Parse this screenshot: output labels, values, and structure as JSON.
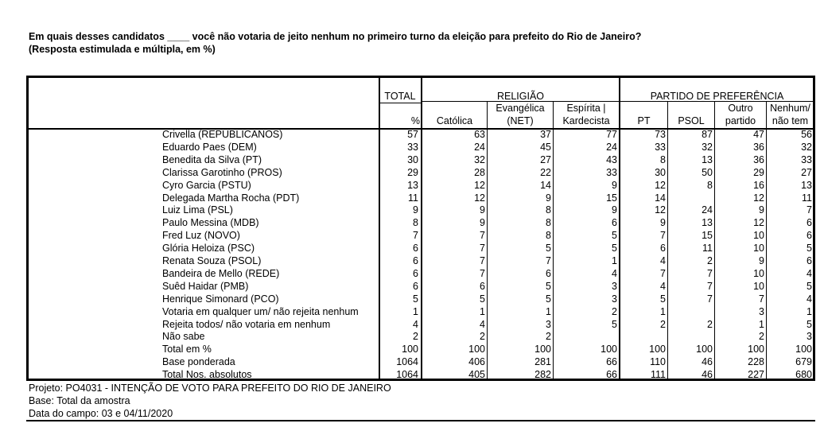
{
  "title": {
    "line1": "Em quais desses candidatos ____ você não votaria de jeito nenhum no primeiro turno da eleição para prefeito do Rio de Janeiro?",
    "line2": "(Resposta estimulada e múltipla, em %)"
  },
  "header": {
    "total": "TOTAL",
    "total_unit": "%",
    "religiao": "RELIGIÃO",
    "partido": "PARTIDO DE PREFERÊNCIA",
    "columns": [
      {
        "line1": "",
        "line2": "Católica"
      },
      {
        "line1": "Evangélica",
        "line2": "(NET)"
      },
      {
        "line1": "Espírita |",
        "line2": "Kardecista"
      },
      {
        "line1": "",
        "line2": "PT"
      },
      {
        "line1": "",
        "line2": "PSOL"
      },
      {
        "line1": "Outro",
        "line2": "partido"
      },
      {
        "line1": "Nenhum/",
        "line2": "não tem"
      }
    ]
  },
  "rows": [
    {
      "label": "Crivella (REPUBLICANOS)",
      "values": [
        "57",
        "63",
        "37",
        "77",
        "73",
        "87",
        "47",
        "56"
      ]
    },
    {
      "label": "Eduardo Paes (DEM)",
      "values": [
        "33",
        "24",
        "45",
        "24",
        "33",
        "32",
        "36",
        "32"
      ]
    },
    {
      "label": "Benedita da Silva (PT)",
      "values": [
        "30",
        "32",
        "27",
        "43",
        "8",
        "13",
        "36",
        "33"
      ]
    },
    {
      "label": "Clarissa Garotinho (PROS)",
      "values": [
        "29",
        "28",
        "22",
        "33",
        "30",
        "50",
        "29",
        "27"
      ]
    },
    {
      "label": "Cyro Garcia (PSTU)",
      "values": [
        "13",
        "12",
        "14",
        "9",
        "12",
        "8",
        "16",
        "13"
      ]
    },
    {
      "label": "Delegada Martha Rocha (PDT)",
      "values": [
        "11",
        "12",
        "9",
        "15",
        "14",
        "",
        "12",
        "11"
      ]
    },
    {
      "label": "Luiz Lima (PSL)",
      "values": [
        "9",
        "9",
        "8",
        "9",
        "12",
        "24",
        "9",
        "7"
      ]
    },
    {
      "label": "Paulo Messina (MDB)",
      "values": [
        "8",
        "9",
        "8",
        "6",
        "9",
        "13",
        "12",
        "6"
      ]
    },
    {
      "label": "Fred Luz (NOVO)",
      "values": [
        "7",
        "7",
        "8",
        "5",
        "7",
        "15",
        "10",
        "6"
      ]
    },
    {
      "label": "Glória Heloiza (PSC)",
      "values": [
        "6",
        "7",
        "5",
        "5",
        "6",
        "11",
        "10",
        "5"
      ]
    },
    {
      "label": "Renata Souza (PSOL)",
      "values": [
        "6",
        "7",
        "7",
        "1",
        "4",
        "2",
        "9",
        "6"
      ]
    },
    {
      "label": "Bandeira de Mello (REDE)",
      "values": [
        "6",
        "7",
        "6",
        "4",
        "7",
        "7",
        "10",
        "4"
      ]
    },
    {
      "label": "Suêd Haidar (PMB)",
      "values": [
        "6",
        "6",
        "5",
        "3",
        "4",
        "7",
        "10",
        "5"
      ]
    },
    {
      "label": "Henrique Simonard (PCO)",
      "values": [
        "5",
        "5",
        "5",
        "3",
        "5",
        "7",
        "7",
        "4"
      ]
    },
    {
      "label": "Votaria em qualquer um/ não rejeita nenhum",
      "values": [
        "1",
        "1",
        "1",
        "2",
        "1",
        "",
        "3",
        "1"
      ]
    },
    {
      "label": "Rejeita todos/ não votaria em nenhum",
      "values": [
        "4",
        "4",
        "3",
        "5",
        "2",
        "2",
        "1",
        "5"
      ]
    },
    {
      "label": "Não sabe",
      "values": [
        "2",
        "2",
        "2",
        "",
        "",
        "",
        "2",
        "3"
      ]
    },
    {
      "label": "Total em %",
      "values": [
        "100",
        "100",
        "100",
        "100",
        "100",
        "100",
        "100",
        "100"
      ]
    },
    {
      "label": "Base ponderada",
      "values": [
        "1064",
        "406",
        "281",
        "66",
        "110",
        "46",
        "228",
        "679"
      ]
    },
    {
      "label": "Total Nos. absolutos",
      "values": [
        "1064",
        "405",
        "282",
        "66",
        "111",
        "46",
        "227",
        "680"
      ]
    }
  ],
  "footer": {
    "projeto": "Projeto: PO4031 - INTENÇÃO DE VOTO PARA PREFEITO DO RIO DE JANEIRO",
    "base": "Base: Total da amostra",
    "data": "Data do campo: 03 e 04/11/2020"
  }
}
